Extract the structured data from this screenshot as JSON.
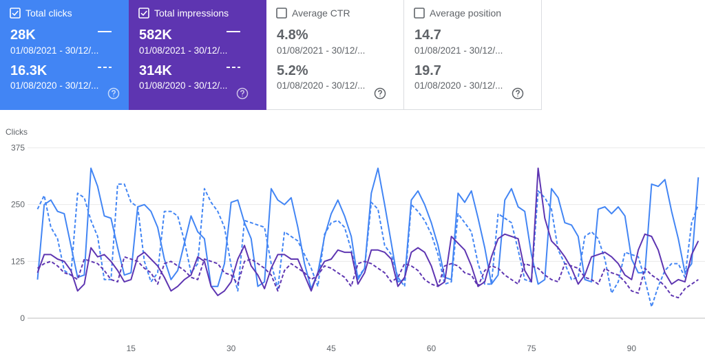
{
  "cards": [
    {
      "label": "Total clicks",
      "checked": true,
      "color": "#4285f4",
      "current": "28K",
      "current_range": "01/08/2021 - 30/12/...",
      "previous": "16.3K",
      "previous_range": "01/08/2020 - 30/12/..."
    },
    {
      "label": "Total impressions",
      "checked": true,
      "color": "#5e35b1",
      "current": "582K",
      "current_range": "01/08/2021 - 30/12/...",
      "previous": "314K",
      "previous_range": "01/08/2020 - 30/12/..."
    },
    {
      "label": "Average CTR",
      "checked": false,
      "color": "#ffffff",
      "current": "4.8%",
      "current_range": "01/08/2021 - 30/12/...",
      "previous": "5.2%",
      "previous_range": "01/08/2020 - 30/12/..."
    },
    {
      "label": "Average position",
      "checked": false,
      "color": "#ffffff",
      "current": "14.7",
      "current_range": "01/08/2021 - 30/12/...",
      "previous": "19.7",
      "previous_range": "01/08/2020 - 30/12/..."
    }
  ],
  "chart_data": {
    "type": "line",
    "y_label": "Clicks",
    "grid": true,
    "xlim": [
      -0.5,
      101
    ],
    "xticks": [
      15,
      30,
      45,
      60,
      75,
      90
    ],
    "ylim": [
      0,
      375
    ],
    "yticks": [
      0,
      125,
      250,
      375
    ],
    "x": [
      1,
      2,
      3,
      4,
      5,
      6,
      7,
      8,
      9,
      10,
      11,
      12,
      13,
      14,
      15,
      16,
      17,
      18,
      19,
      20,
      21,
      22,
      23,
      24,
      25,
      26,
      27,
      28,
      29,
      30,
      31,
      32,
      33,
      34,
      35,
      36,
      37,
      38,
      39,
      40,
      41,
      42,
      43,
      44,
      45,
      46,
      47,
      48,
      49,
      50,
      51,
      52,
      53,
      54,
      55,
      56,
      57,
      58,
      59,
      60,
      61,
      62,
      63,
      64,
      65,
      66,
      67,
      68,
      69,
      70,
      71,
      72,
      73,
      74,
      75,
      76,
      77,
      78,
      79,
      80,
      81,
      82,
      83,
      84,
      85,
      86,
      87,
      88,
      89,
      90,
      91,
      92,
      93,
      94,
      95,
      96,
      97,
      98,
      99,
      100
    ],
    "series": [
      {
        "color": "#4285f4",
        "style": "solid",
        "values": [
          85,
          250,
          260,
          235,
          230,
          160,
          90,
          95,
          330,
          290,
          225,
          220,
          155,
          95,
          100,
          245,
          250,
          235,
          200,
          130,
          85,
          105,
          165,
          225,
          190,
          175,
          70,
          70,
          120,
          255,
          260,
          210,
          175,
          70,
          80,
          285,
          260,
          250,
          265,
          200,
          120,
          65,
          100,
          180,
          230,
          260,
          225,
          180,
          85,
          110,
          275,
          330,
          250,
          165,
          80,
          85,
          260,
          280,
          250,
          210,
          160,
          90,
          85,
          275,
          255,
          280,
          220,
          155,
          75,
          95,
          260,
          285,
          245,
          235,
          140,
          75,
          85,
          285,
          265,
          210,
          205,
          180,
          85,
          80,
          240,
          245,
          230,
          245,
          225,
          130,
          100,
          100,
          295,
          290,
          305,
          235,
          175,
          100,
          120,
          310
        ]
      },
      {
        "color": "#4285f4",
        "style": "dashed",
        "values": [
          240,
          270,
          200,
          175,
          105,
          95,
          275,
          265,
          215,
          180,
          85,
          85,
          295,
          295,
          255,
          245,
          125,
          80,
          100,
          235,
          235,
          225,
          170,
          100,
          120,
          285,
          255,
          235,
          200,
          115,
          60,
          215,
          210,
          205,
          200,
          120,
          65,
          190,
          180,
          170,
          140,
          110,
          70,
          185,
          210,
          215,
          200,
          150,
          90,
          110,
          255,
          240,
          160,
          140,
          90,
          70,
          250,
          235,
          215,
          185,
          140,
          75,
          80,
          230,
          210,
          190,
          120,
          75,
          75,
          230,
          220,
          210,
          150,
          85,
          80,
          280,
          265,
          240,
          150,
          120,
          85,
          90,
          180,
          190,
          175,
          130,
          55,
          80,
          145,
          140,
          135,
          85,
          25,
          70,
          105,
          120,
          120,
          90,
          210,
          250
        ]
      },
      {
        "color": "#5e35b1",
        "style": "solid",
        "values": [
          100,
          140,
          140,
          130,
          125,
          105,
          60,
          75,
          155,
          135,
          140,
          125,
          105,
          80,
          85,
          135,
          145,
          130,
          115,
          90,
          60,
          70,
          85,
          95,
          135,
          125,
          70,
          50,
          60,
          80,
          130,
          160,
          115,
          95,
          65,
          110,
          140,
          140,
          130,
          130,
          95,
          60,
          100,
          125,
          130,
          150,
          145,
          145,
          75,
          100,
          150,
          150,
          145,
          130,
          70,
          90,
          145,
          155,
          145,
          115,
          70,
          80,
          180,
          165,
          150,
          115,
          70,
          80,
          135,
          175,
          185,
          180,
          175,
          105,
          80,
          330,
          220,
          170,
          155,
          135,
          110,
          75,
          95,
          135,
          140,
          145,
          135,
          120,
          95,
          85,
          150,
          185,
          180,
          150,
          100,
          75,
          85,
          80,
          140,
          170
        ]
      },
      {
        "color": "#5e35b1",
        "style": "dashed",
        "values": [
          110,
          120,
          125,
          115,
          100,
          95,
          85,
          130,
          125,
          120,
          105,
          85,
          80,
          135,
          130,
          125,
          110,
          100,
          75,
          120,
          125,
          115,
          105,
          90,
          85,
          130,
          125,
          120,
          100,
          95,
          75,
          125,
          130,
          120,
          110,
          95,
          60,
          105,
          120,
          110,
          100,
          85,
          95,
          115,
          110,
          100,
          90,
          70,
          120,
          125,
          120,
          110,
          100,
          80,
          90,
          120,
          115,
          105,
          85,
          75,
          70,
          115,
          120,
          115,
          100,
          95,
          70,
          105,
          115,
          110,
          95,
          85,
          75,
          120,
          115,
          110,
          95,
          85,
          80,
          120,
          115,
          110,
          90,
          85,
          75,
          110,
          100,
          95,
          80,
          60,
          55,
          110,
          95,
          85,
          70,
          50,
          45,
          65,
          75,
          85
        ]
      }
    ]
  }
}
